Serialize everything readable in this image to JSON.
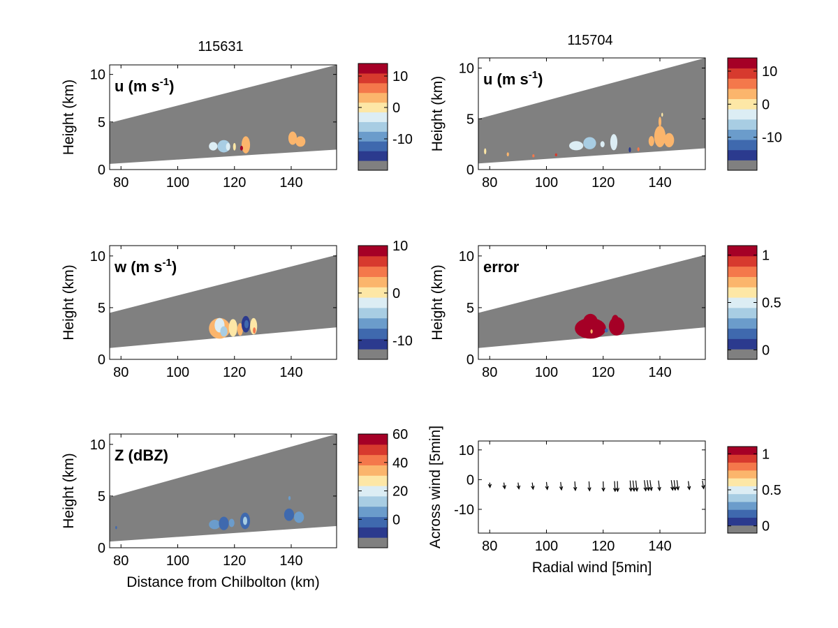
{
  "figure": {
    "column_titles": [
      "115631",
      "115704"
    ]
  },
  "palette": {
    "colors": [
      "#808080",
      "#2b3a8e",
      "#3f69ae",
      "#6b9ccb",
      "#a8cde3",
      "#dcedf4",
      "#fde7a6",
      "#fbb56c",
      "#f4784b",
      "#d73a2e",
      "#a50026"
    ],
    "dbz_colors": [
      "#808080",
      "#2b3a8e",
      "#3f69ae",
      "#6b9ccb",
      "#a8cde3",
      "#dcedf4",
      "#fde7a6",
      "#fbb56c",
      "#f4784b",
      "#d73a2e",
      "#a50026"
    ],
    "beam_gray": "#808080"
  },
  "chart_data": [
    {
      "id": "u-115631",
      "type": "heatmap",
      "title": "u (m s-1)",
      "title_main": "u (m s",
      "title_sup": "-1",
      "title_end": ")",
      "ylabel": "Height (km)",
      "xlim": [
        76,
        156
      ],
      "ylim": [
        0,
        11
      ],
      "xticks": [
        "80",
        "100",
        "120",
        "140"
      ],
      "yticks": [
        "0",
        "5",
        "10"
      ],
      "beam": {
        "x": [
          76,
          156
        ],
        "bottom": [
          0.6,
          2.1
        ],
        "top": [
          4.9,
          11
        ]
      },
      "colorbar_ticks": [
        {
          "label": "10",
          "value": 10
        },
        {
          "label": "0",
          "value": 0
        },
        {
          "label": "-10",
          "value": -10
        }
      ],
      "colorbar_range": [
        -20,
        14
      ],
      "echoes": [
        {
          "x": 111,
          "y": 2.0,
          "w": 3.0,
          "h": 0.9,
          "level": 5
        },
        {
          "x": 114,
          "y": 1.8,
          "w": 4.5,
          "h": 1.3,
          "level": 4
        },
        {
          "x": 117,
          "y": 2.0,
          "w": 1.5,
          "h": 0.8,
          "level": 5
        },
        {
          "x": 119.5,
          "y": 2.0,
          "w": 1.0,
          "h": 0.8,
          "level": 6
        },
        {
          "x": 122.5,
          "y": 1.7,
          "w": 3.0,
          "h": 1.8,
          "level": 7
        },
        {
          "x": 122,
          "y": 2.0,
          "w": 1.0,
          "h": 0.5,
          "level": 10
        },
        {
          "x": 139,
          "y": 2.6,
          "w": 3.0,
          "h": 1.4,
          "level": 7
        },
        {
          "x": 141.5,
          "y": 2.4,
          "w": 3.5,
          "h": 1.1,
          "level": 7
        }
      ]
    },
    {
      "id": "u-115704",
      "type": "heatmap",
      "title": "u (m s-1)",
      "title_main": "u (m s",
      "title_sup": "-1",
      "title_end": ")",
      "ylabel": "Height (km)",
      "xlim": [
        76,
        156
      ],
      "ylim": [
        0,
        11
      ],
      "xticks": [
        "80",
        "100",
        "120",
        "140"
      ],
      "yticks": [
        "0",
        "5",
        "10"
      ],
      "beam": {
        "x": [
          76,
          156
        ],
        "bottom": [
          0.6,
          2.1
        ],
        "top": [
          5.0,
          11
        ]
      },
      "colorbar_ticks": [
        {
          "label": "10",
          "value": 10
        },
        {
          "label": "0",
          "value": 0
        },
        {
          "label": "-10",
          "value": -10
        }
      ],
      "colorbar_range": [
        -20,
        14
      ],
      "echoes": [
        {
          "x": 108,
          "y": 1.9,
          "w": 5.0,
          "h": 0.9,
          "level": 5
        },
        {
          "x": 113,
          "y": 2.0,
          "w": 4.5,
          "h": 1.2,
          "level": 4
        },
        {
          "x": 119,
          "y": 2.2,
          "w": 1.5,
          "h": 0.6,
          "level": 5
        },
        {
          "x": 122.5,
          "y": 1.9,
          "w": 2.5,
          "h": 1.6,
          "level": 5
        },
        {
          "x": 136,
          "y": 2.3,
          "w": 2.0,
          "h": 1.0,
          "level": 7
        },
        {
          "x": 138,
          "y": 2.2,
          "w": 4.0,
          "h": 2.1,
          "level": 7
        },
        {
          "x": 141.5,
          "y": 2.2,
          "w": 3.5,
          "h": 1.4,
          "level": 7
        },
        {
          "x": 139.5,
          "y": 4.2,
          "w": 1.0,
          "h": 1.0,
          "level": 7
        },
        {
          "x": 140.5,
          "y": 5.2,
          "w": 0.6,
          "h": 0.4,
          "level": 6
        },
        {
          "x": 78,
          "y": 1.5,
          "w": 0.8,
          "h": 0.6,
          "level": 6
        },
        {
          "x": 86,
          "y": 1.3,
          "w": 0.8,
          "h": 0.4,
          "level": 7
        },
        {
          "x": 95,
          "y": 1.2,
          "w": 0.8,
          "h": 0.3,
          "level": 8
        },
        {
          "x": 103,
          "y": 1.3,
          "w": 0.8,
          "h": 0.3,
          "level": 9
        },
        {
          "x": 129,
          "y": 1.7,
          "w": 0.8,
          "h": 0.5,
          "level": 1
        },
        {
          "x": 132,
          "y": 1.8,
          "w": 0.8,
          "h": 0.4,
          "level": 8
        }
      ]
    },
    {
      "id": "w-115631",
      "type": "heatmap",
      "title": "w (m s-1)",
      "title_main": "w (m s",
      "title_sup": "-1",
      "title_end": ")",
      "ylabel": "Height (km)",
      "xlim": [
        76,
        156
      ],
      "ylim": [
        0,
        11
      ],
      "xticks": [
        "80",
        "100",
        "120",
        "140"
      ],
      "yticks": [
        "0",
        "5",
        "10"
      ],
      "beam": {
        "x": [
          76,
          156
        ],
        "bottom": [
          1.1,
          3.1
        ],
        "top": [
          4.5,
          10.1
        ]
      },
      "colorbar_ticks": [
        {
          "label": "10",
          "value": 10
        },
        {
          "label": "0",
          "value": 0
        },
        {
          "label": "-10",
          "value": -10
        }
      ],
      "colorbar_range": [
        -14,
        10
      ],
      "echoes": [
        {
          "x": 111,
          "y": 2.0,
          "w": 7.5,
          "h": 2.0,
          "level": 7
        },
        {
          "x": 113,
          "y": 2.6,
          "w": 3.5,
          "h": 1.4,
          "level": 5
        },
        {
          "x": 115,
          "y": 2.2,
          "w": 2.5,
          "h": 1.0,
          "level": 4
        },
        {
          "x": 118,
          "y": 2.2,
          "w": 3.0,
          "h": 1.7,
          "level": 6
        },
        {
          "x": 121,
          "y": 2.3,
          "w": 2.0,
          "h": 1.2,
          "level": 7
        },
        {
          "x": 122.5,
          "y": 2.6,
          "w": 3.0,
          "h": 1.6,
          "level": 1
        },
        {
          "x": 123.5,
          "y": 3.0,
          "w": 1.5,
          "h": 0.8,
          "level": 2
        },
        {
          "x": 125.5,
          "y": 2.4,
          "w": 2.5,
          "h": 1.6,
          "level": 6
        },
        {
          "x": 126.5,
          "y": 2.5,
          "w": 1.0,
          "h": 0.6,
          "level": 8
        }
      ]
    },
    {
      "id": "error-115704",
      "type": "heatmap",
      "title": "error",
      "title_main": "error",
      "title_sup": "",
      "title_end": "",
      "ylabel": "Height (km)",
      "xlim": [
        76,
        156
      ],
      "ylim": [
        0,
        11
      ],
      "xticks": [
        "80",
        "100",
        "120",
        "140"
      ],
      "yticks": [
        "0",
        "5",
        "10"
      ],
      "beam": {
        "x": [
          76,
          156
        ],
        "bottom": [
          1.1,
          3.1
        ],
        "top": [
          4.5,
          10.1
        ]
      },
      "colorbar_ticks": [
        {
          "label": "1",
          "value": 1
        },
        {
          "label": "0.5",
          "value": 0.5
        },
        {
          "label": "0",
          "value": 0
        }
      ],
      "colorbar_range": [
        -0.1,
        1.1
      ],
      "echoes": [
        {
          "x": 110,
          "y": 2.0,
          "w": 11.0,
          "h": 2.0,
          "level": 10
        },
        {
          "x": 113,
          "y": 3.0,
          "w": 5.0,
          "h": 1.4,
          "level": 10
        },
        {
          "x": 122,
          "y": 2.3,
          "w": 5.5,
          "h": 1.8,
          "level": 10
        },
        {
          "x": 123,
          "y": 3.3,
          "w": 2.5,
          "h": 1.0,
          "level": 10
        },
        {
          "x": 115.5,
          "y": 2.5,
          "w": 0.8,
          "h": 0.4,
          "level": 7
        },
        {
          "x": 120.5,
          "y": 2.6,
          "w": 1.2,
          "h": 0.4,
          "level": 2
        }
      ]
    },
    {
      "id": "z-115631",
      "type": "heatmap",
      "title": "Z (dBZ)",
      "title_main": "Z (dBZ)",
      "title_sup": "",
      "title_end": "",
      "ylabel": "Height (km)",
      "xlabel": "Distance from Chilbolton (km)",
      "xlim": [
        76,
        156
      ],
      "ylim": [
        0,
        11
      ],
      "xticks": [
        "80",
        "100",
        "120",
        "140"
      ],
      "yticks": [
        "0",
        "5",
        "10"
      ],
      "beam": {
        "x": [
          76,
          156
        ],
        "bottom": [
          0.6,
          2.1
        ],
        "top": [
          4.9,
          11
        ]
      },
      "colorbar_ticks": [
        {
          "label": "60",
          "value": 60
        },
        {
          "label": "40",
          "value": 40
        },
        {
          "label": "20",
          "value": 20
        },
        {
          "label": "0",
          "value": 0
        }
      ],
      "colorbar_range": [
        -20,
        60
      ],
      "echoes": [
        {
          "x": 111,
          "y": 1.8,
          "w": 4.0,
          "h": 0.9,
          "level": 3
        },
        {
          "x": 114.5,
          "y": 1.7,
          "w": 3.5,
          "h": 1.3,
          "level": 2
        },
        {
          "x": 118,
          "y": 2.0,
          "w": 2.0,
          "h": 0.8,
          "level": 3
        },
        {
          "x": 122,
          "y": 1.8,
          "w": 3.5,
          "h": 1.6,
          "level": 2
        },
        {
          "x": 123,
          "y": 2.2,
          "w": 1.5,
          "h": 0.8,
          "level": 4
        },
        {
          "x": 137.5,
          "y": 2.6,
          "w": 3.5,
          "h": 1.2,
          "level": 2
        },
        {
          "x": 141,
          "y": 2.4,
          "w": 3.5,
          "h": 1.1,
          "level": 3
        },
        {
          "x": 139,
          "y": 4.6,
          "w": 0.8,
          "h": 0.4,
          "level": 3
        },
        {
          "x": 78,
          "y": 1.8,
          "w": 0.6,
          "h": 0.3,
          "level": 2
        }
      ]
    },
    {
      "id": "quiver-115704",
      "type": "scatter",
      "title": "",
      "ylabel": "Across wind [5min]",
      "xlabel": "Radial wind [5min]",
      "xlim": [
        76,
        156
      ],
      "ylim": [
        -18,
        13
      ],
      "xticks": [
        "80",
        "100",
        "120",
        "140"
      ],
      "yticks": [
        "-10",
        "0",
        "10"
      ],
      "colorbar_ticks": [
        {
          "label": "1",
          "value": 1
        },
        {
          "label": "0.5",
          "value": 0.5
        },
        {
          "label": "0",
          "value": 0
        }
      ],
      "colorbar_range": [
        -0.1,
        1.1
      ],
      "arrows": [
        {
          "x": 80,
          "y": -1.0,
          "dx": 0.1,
          "dy": -1.6
        },
        {
          "x": 85,
          "y": -1.0,
          "dx": 0.3,
          "dy": -2.0
        },
        {
          "x": 90,
          "y": -1.0,
          "dx": 0.3,
          "dy": -2.1
        },
        {
          "x": 95,
          "y": -1.0,
          "dx": 0.3,
          "dy": -2.2
        },
        {
          "x": 100,
          "y": -0.8,
          "dx": 0.3,
          "dy": -2.5
        },
        {
          "x": 105,
          "y": -0.8,
          "dx": 0.3,
          "dy": -2.6
        },
        {
          "x": 110,
          "y": -0.6,
          "dx": 0.2,
          "dy": -3.0
        },
        {
          "x": 115,
          "y": -0.6,
          "dx": 0.2,
          "dy": -3.1
        },
        {
          "x": 120,
          "y": -0.6,
          "dx": 0.1,
          "dy": -3.2
        },
        {
          "x": 124,
          "y": -0.5,
          "dx": 0.2,
          "dy": -3.4
        },
        {
          "x": 125,
          "y": -0.5,
          "dx": 0.1,
          "dy": -3.4
        },
        {
          "x": 129.5,
          "y": -0.3,
          "dx": 0.3,
          "dy": -3.5
        },
        {
          "x": 130.5,
          "y": -0.3,
          "dx": 0.4,
          "dy": -3.5
        },
        {
          "x": 131.5,
          "y": -0.3,
          "dx": 0.4,
          "dy": -3.5
        },
        {
          "x": 134.5,
          "y": -0.2,
          "dx": 0.5,
          "dy": -3.5
        },
        {
          "x": 135.5,
          "y": -0.2,
          "dx": 0.5,
          "dy": -3.4
        },
        {
          "x": 136.5,
          "y": -0.2,
          "dx": 0.5,
          "dy": -3.4
        },
        {
          "x": 139.5,
          "y": -0.3,
          "dx": 0.4,
          "dy": -3.3
        },
        {
          "x": 144,
          "y": -0.2,
          "dx": 0.5,
          "dy": -3.3
        },
        {
          "x": 145,
          "y": -0.2,
          "dx": 0.4,
          "dy": -3.3
        },
        {
          "x": 146,
          "y": -0.2,
          "dx": 0.4,
          "dy": -3.2
        },
        {
          "x": 150,
          "y": -0.5,
          "dx": 0.4,
          "dy": -2.8
        },
        {
          "x": 155,
          "y": -0.4,
          "dx": 0.4,
          "dy": -2.6
        }
      ]
    }
  ]
}
